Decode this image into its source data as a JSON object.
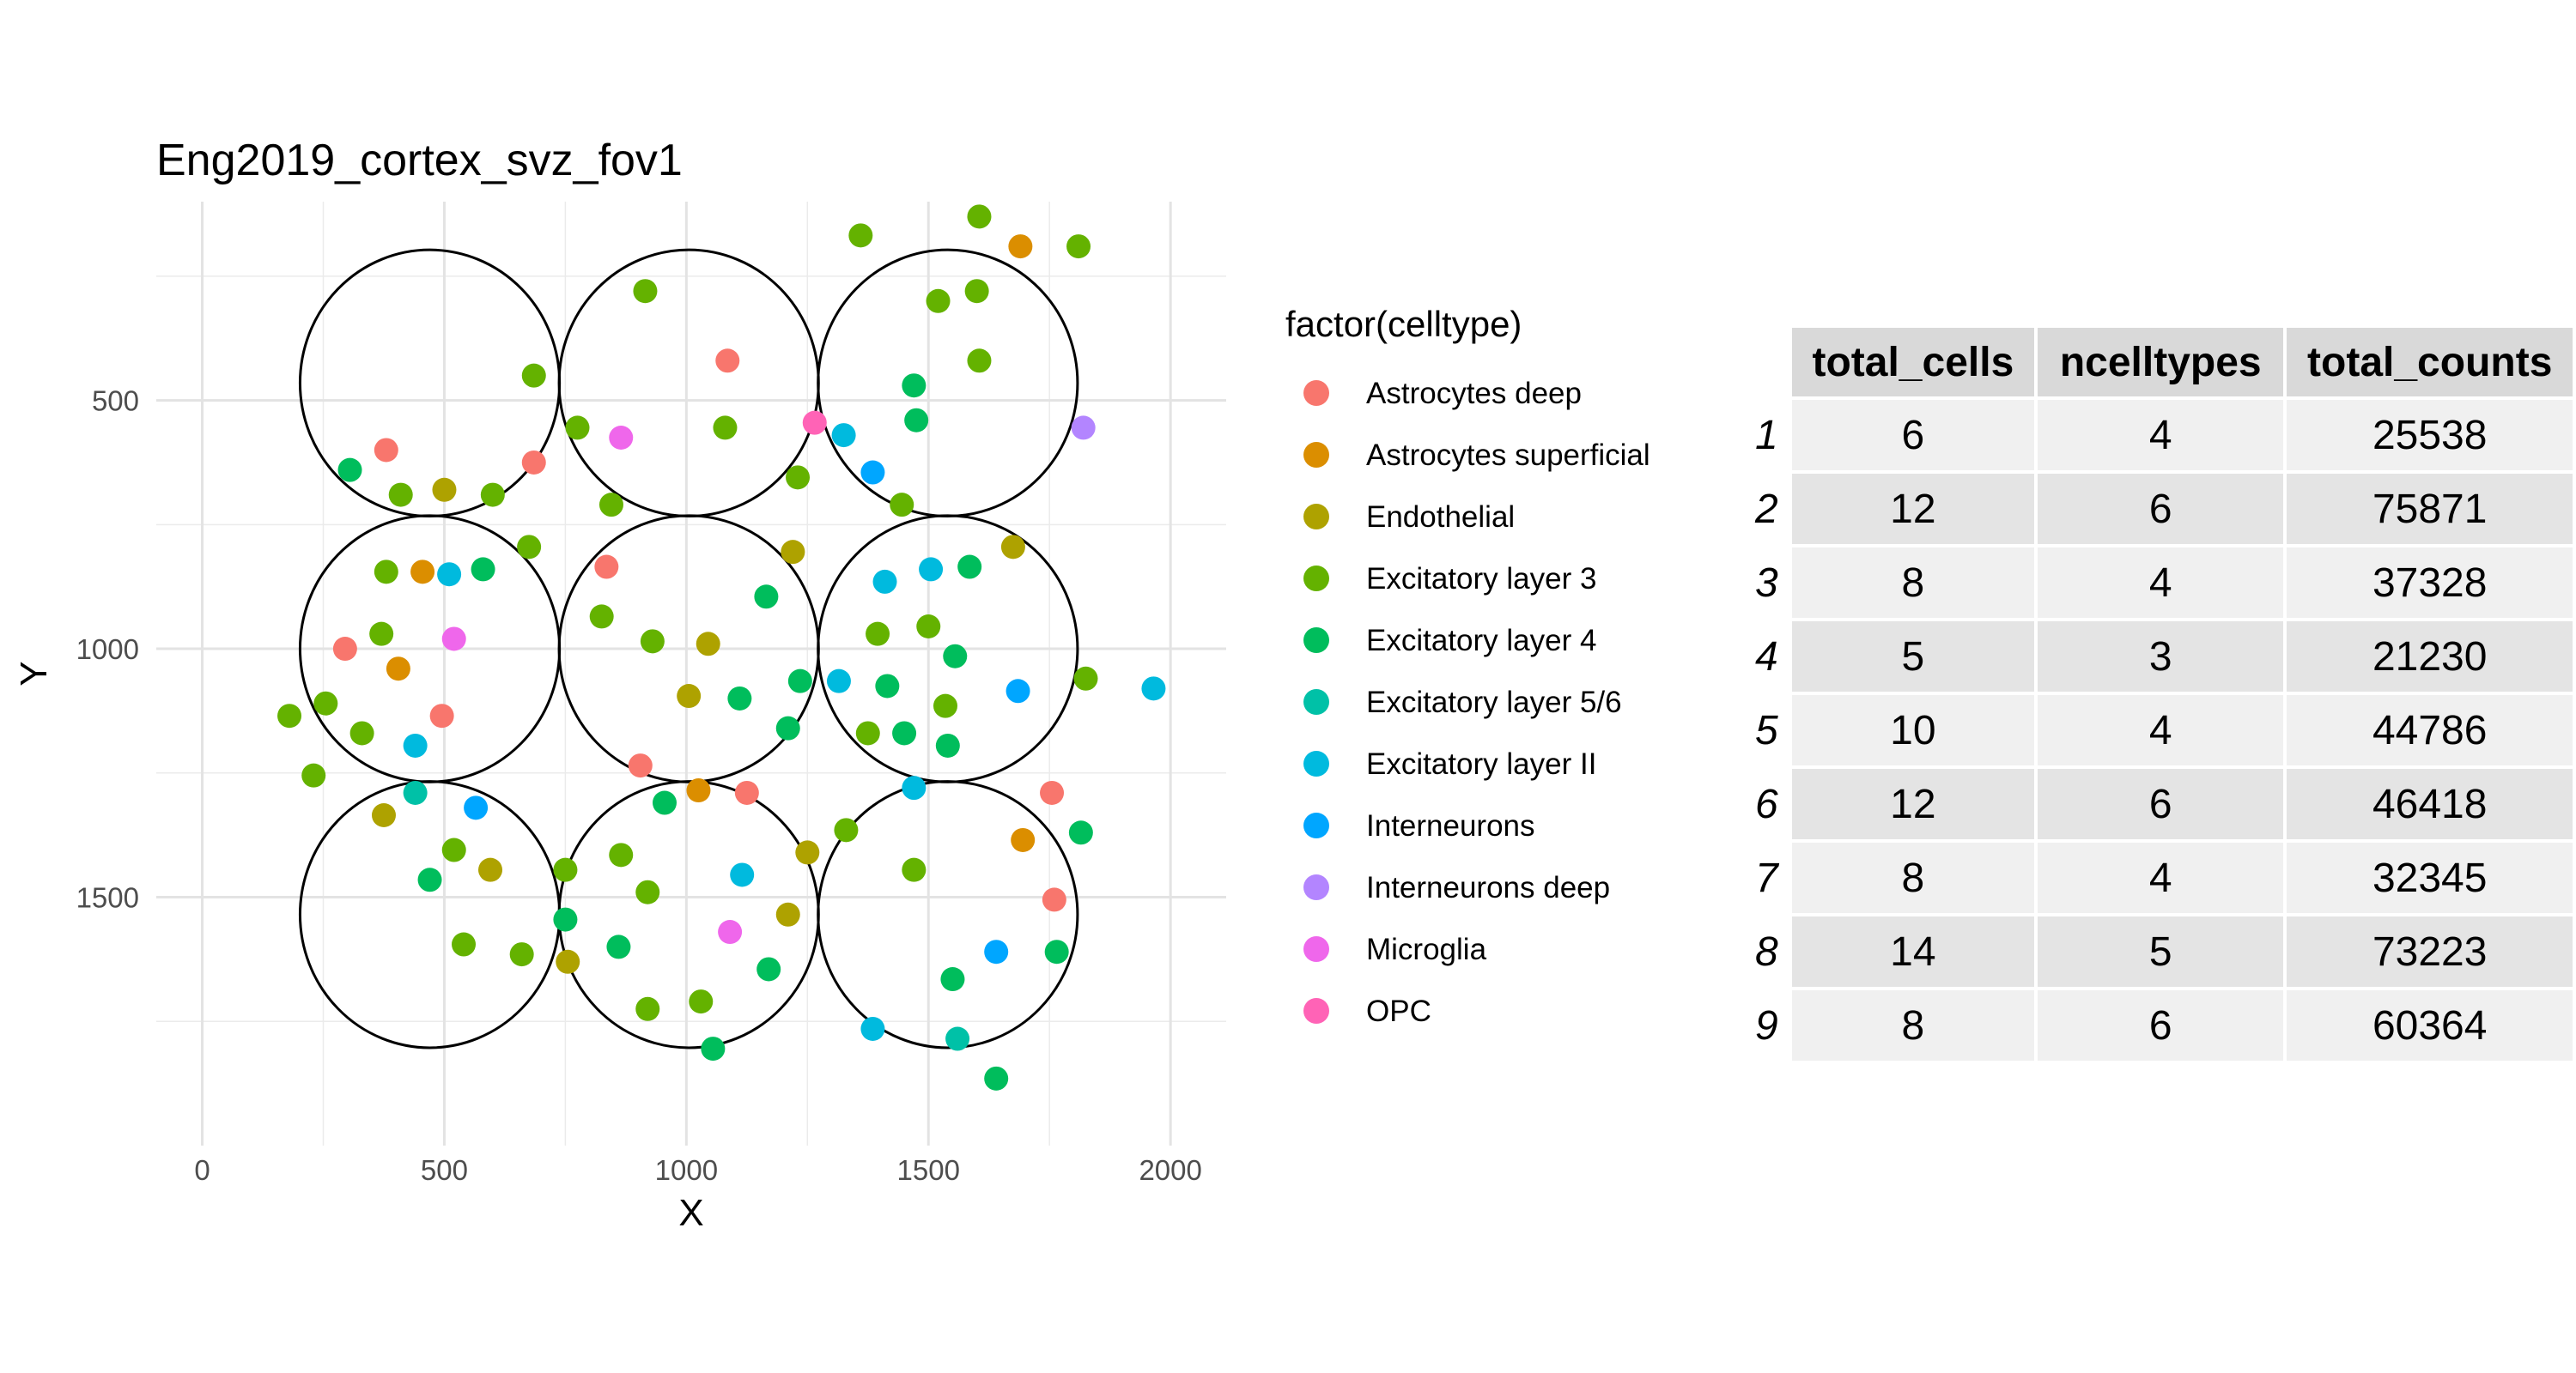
{
  "chart_data": {
    "type": "scatter",
    "title": "Eng2019_cortex_svz_fov1",
    "xlabel": "X",
    "ylabel": "Y",
    "xlim": [
      -95,
      2115
    ],
    "ylim": [
      2000,
      100
    ],
    "y_reversed": true,
    "x_ticks": [
      0,
      500,
      1000,
      1500,
      2000
    ],
    "y_ticks": [
      500,
      1000,
      1500
    ],
    "grid": true,
    "legend_title": "factor(celltype)",
    "legend_position": "right",
    "categories": [
      {
        "name": "Astrocytes deep",
        "color": "#F8766D"
      },
      {
        "name": "Astrocytes superficial",
        "color": "#DB8E00"
      },
      {
        "name": "Endothelial",
        "color": "#AEA200"
      },
      {
        "name": "Excitatory layer 3",
        "color": "#64B200"
      },
      {
        "name": "Excitatory layer 4",
        "color": "#00BD5C"
      },
      {
        "name": "Excitatory layer 5/6",
        "color": "#00C1A7"
      },
      {
        "name": "Excitatory layer II",
        "color": "#00BADE"
      },
      {
        "name": "Interneurons",
        "color": "#00A6FF"
      },
      {
        "name": "Interneurons deep",
        "color": "#B385FF"
      },
      {
        "name": "Microglia",
        "color": "#EF67EB"
      },
      {
        "name": "OPC",
        "color": "#FF63B6"
      }
    ],
    "circles": [
      {
        "cx": 470,
        "cy": 465,
        "r": 268
      },
      {
        "cx": 1005,
        "cy": 465,
        "r": 268
      },
      {
        "cx": 1540,
        "cy": 465,
        "r": 268
      },
      {
        "cx": 470,
        "cy": 1000,
        "r": 268
      },
      {
        "cx": 1005,
        "cy": 1000,
        "r": 268
      },
      {
        "cx": 1540,
        "cy": 1000,
        "r": 268
      },
      {
        "cx": 470,
        "cy": 1535,
        "r": 268
      },
      {
        "cx": 1005,
        "cy": 1535,
        "r": 268
      },
      {
        "cx": 1540,
        "cy": 1535,
        "r": 268
      }
    ],
    "points": [
      {
        "x": 1360,
        "y": 168,
        "type": "Excitatory layer 3"
      },
      {
        "x": 1605,
        "y": 130,
        "type": "Excitatory layer 3"
      },
      {
        "x": 1690,
        "y": 190,
        "type": "Astrocytes superficial"
      },
      {
        "x": 1810,
        "y": 190,
        "type": "Excitatory layer 3"
      },
      {
        "x": 915,
        "y": 280,
        "type": "Excitatory layer 3"
      },
      {
        "x": 1520,
        "y": 300,
        "type": "Excitatory layer 3"
      },
      {
        "x": 1600,
        "y": 280,
        "type": "Excitatory layer 3"
      },
      {
        "x": 1085,
        "y": 420,
        "type": "Astrocytes deep"
      },
      {
        "x": 1605,
        "y": 420,
        "type": "Excitatory layer 3"
      },
      {
        "x": 685,
        "y": 450,
        "type": "Excitatory layer 3"
      },
      {
        "x": 1470,
        "y": 470,
        "type": "Excitatory layer 4"
      },
      {
        "x": 775,
        "y": 555,
        "type": "Excitatory layer 3"
      },
      {
        "x": 865,
        "y": 575,
        "type": "Microglia"
      },
      {
        "x": 1080,
        "y": 555,
        "type": "Excitatory layer 3"
      },
      {
        "x": 1265,
        "y": 545,
        "type": "OPC"
      },
      {
        "x": 1325,
        "y": 570,
        "type": "Excitatory layer II"
      },
      {
        "x": 1475,
        "y": 540,
        "type": "Excitatory layer 4"
      },
      {
        "x": 1820,
        "y": 555,
        "type": "Interneurons deep"
      },
      {
        "x": 380,
        "y": 600,
        "type": "Astrocytes deep"
      },
      {
        "x": 685,
        "y": 625,
        "type": "Astrocytes deep"
      },
      {
        "x": 305,
        "y": 640,
        "type": "Excitatory layer 4"
      },
      {
        "x": 1230,
        "y": 655,
        "type": "Excitatory layer 3"
      },
      {
        "x": 1385,
        "y": 645,
        "type": "Interneurons"
      },
      {
        "x": 410,
        "y": 690,
        "type": "Excitatory layer 3"
      },
      {
        "x": 500,
        "y": 680,
        "type": "Endothelial"
      },
      {
        "x": 600,
        "y": 690,
        "type": "Excitatory layer 3"
      },
      {
        "x": 845,
        "y": 710,
        "type": "Excitatory layer 3"
      },
      {
        "x": 1445,
        "y": 710,
        "type": "Excitatory layer 3"
      },
      {
        "x": 675,
        "y": 795,
        "type": "Excitatory layer 3"
      },
      {
        "x": 1220,
        "y": 805,
        "type": "Endothelial"
      },
      {
        "x": 1675,
        "y": 795,
        "type": "Endothelial"
      },
      {
        "x": 835,
        "y": 835,
        "type": "Astrocytes deep"
      },
      {
        "x": 380,
        "y": 845,
        "type": "Excitatory layer 3"
      },
      {
        "x": 455,
        "y": 845,
        "type": "Astrocytes superficial"
      },
      {
        "x": 510,
        "y": 850,
        "type": "Excitatory layer II"
      },
      {
        "x": 580,
        "y": 840,
        "type": "Excitatory layer 4"
      },
      {
        "x": 1585,
        "y": 835,
        "type": "Excitatory layer 4"
      },
      {
        "x": 1505,
        "y": 840,
        "type": "Excitatory layer II"
      },
      {
        "x": 1410,
        "y": 865,
        "type": "Excitatory layer II"
      },
      {
        "x": 1165,
        "y": 895,
        "type": "Excitatory layer 4"
      },
      {
        "x": 825,
        "y": 935,
        "type": "Excitatory layer 3"
      },
      {
        "x": 370,
        "y": 970,
        "type": "Excitatory layer 3"
      },
      {
        "x": 520,
        "y": 980,
        "type": "Microglia"
      },
      {
        "x": 930,
        "y": 985,
        "type": "Excitatory layer 3"
      },
      {
        "x": 1045,
        "y": 990,
        "type": "Endothelial"
      },
      {
        "x": 1395,
        "y": 970,
        "type": "Excitatory layer 3"
      },
      {
        "x": 1500,
        "y": 955,
        "type": "Excitatory layer 3"
      },
      {
        "x": 295,
        "y": 1000,
        "type": "Astrocytes deep"
      },
      {
        "x": 1555,
        "y": 1015,
        "type": "Excitatory layer 4"
      },
      {
        "x": 405,
        "y": 1040,
        "type": "Astrocytes superficial"
      },
      {
        "x": 1235,
        "y": 1065,
        "type": "Excitatory layer 4"
      },
      {
        "x": 1315,
        "y": 1065,
        "type": "Excitatory layer II"
      },
      {
        "x": 1415,
        "y": 1075,
        "type": "Excitatory layer 4"
      },
      {
        "x": 1685,
        "y": 1085,
        "type": "Interneurons"
      },
      {
        "x": 1825,
        "y": 1060,
        "type": "Excitatory layer 3"
      },
      {
        "x": 1965,
        "y": 1080,
        "type": "Excitatory layer II"
      },
      {
        "x": 1005,
        "y": 1095,
        "type": "Endothelial"
      },
      {
        "x": 1110,
        "y": 1100,
        "type": "Excitatory layer 4"
      },
      {
        "x": 255,
        "y": 1110,
        "type": "Excitatory layer 3"
      },
      {
        "x": 180,
        "y": 1135,
        "type": "Excitatory layer 3"
      },
      {
        "x": 495,
        "y": 1135,
        "type": "Astrocytes deep"
      },
      {
        "x": 1535,
        "y": 1115,
        "type": "Excitatory layer 3"
      },
      {
        "x": 1210,
        "y": 1160,
        "type": "Excitatory layer 4"
      },
      {
        "x": 330,
        "y": 1170,
        "type": "Excitatory layer 3"
      },
      {
        "x": 1375,
        "y": 1170,
        "type": "Excitatory layer 3"
      },
      {
        "x": 1450,
        "y": 1170,
        "type": "Excitatory layer 4"
      },
      {
        "x": 440,
        "y": 1195,
        "type": "Excitatory layer II"
      },
      {
        "x": 1540,
        "y": 1195,
        "type": "Excitatory layer 4"
      },
      {
        "x": 905,
        "y": 1235,
        "type": "Astrocytes deep"
      },
      {
        "x": 230,
        "y": 1255,
        "type": "Excitatory layer 3"
      },
      {
        "x": 440,
        "y": 1290,
        "type": "Excitatory layer 5/6"
      },
      {
        "x": 1025,
        "y": 1285,
        "type": "Astrocytes superficial"
      },
      {
        "x": 1125,
        "y": 1290,
        "type": "Astrocytes deep"
      },
      {
        "x": 1470,
        "y": 1280,
        "type": "Excitatory layer II"
      },
      {
        "x": 1755,
        "y": 1290,
        "type": "Astrocytes deep"
      },
      {
        "x": 955,
        "y": 1310,
        "type": "Excitatory layer 4"
      },
      {
        "x": 375,
        "y": 1335,
        "type": "Endothelial"
      },
      {
        "x": 565,
        "y": 1320,
        "type": "Interneurons"
      },
      {
        "x": 1330,
        "y": 1365,
        "type": "Excitatory layer 3"
      },
      {
        "x": 1815,
        "y": 1370,
        "type": "Excitatory layer 4"
      },
      {
        "x": 1695,
        "y": 1385,
        "type": "Astrocytes superficial"
      },
      {
        "x": 520,
        "y": 1405,
        "type": "Excitatory layer 3"
      },
      {
        "x": 865,
        "y": 1415,
        "type": "Excitatory layer 3"
      },
      {
        "x": 1250,
        "y": 1410,
        "type": "Endothelial"
      },
      {
        "x": 750,
        "y": 1445,
        "type": "Excitatory layer 3"
      },
      {
        "x": 595,
        "y": 1445,
        "type": "Endothelial"
      },
      {
        "x": 1470,
        "y": 1445,
        "type": "Excitatory layer 3"
      },
      {
        "x": 1115,
        "y": 1455,
        "type": "Excitatory layer II"
      },
      {
        "x": 470,
        "y": 1465,
        "type": "Excitatory layer 4"
      },
      {
        "x": 920,
        "y": 1490,
        "type": "Excitatory layer 3"
      },
      {
        "x": 1760,
        "y": 1505,
        "type": "Astrocytes deep"
      },
      {
        "x": 1210,
        "y": 1535,
        "type": "Endothelial"
      },
      {
        "x": 750,
        "y": 1545,
        "type": "Excitatory layer 4"
      },
      {
        "x": 1090,
        "y": 1570,
        "type": "Microglia"
      },
      {
        "x": 540,
        "y": 1595,
        "type": "Excitatory layer 3"
      },
      {
        "x": 860,
        "y": 1600,
        "type": "Excitatory layer 4"
      },
      {
        "x": 660,
        "y": 1615,
        "type": "Excitatory layer 3"
      },
      {
        "x": 1640,
        "y": 1610,
        "type": "Interneurons"
      },
      {
        "x": 1765,
        "y": 1610,
        "type": "Excitatory layer 4"
      },
      {
        "x": 755,
        "y": 1630,
        "type": "Endothelial"
      },
      {
        "x": 1170,
        "y": 1645,
        "type": "Excitatory layer 4"
      },
      {
        "x": 1550,
        "y": 1665,
        "type": "Excitatory layer 4"
      },
      {
        "x": 920,
        "y": 1725,
        "type": "Excitatory layer 3"
      },
      {
        "x": 1030,
        "y": 1710,
        "type": "Excitatory layer 3"
      },
      {
        "x": 1385,
        "y": 1765,
        "type": "Excitatory layer II"
      },
      {
        "x": 1560,
        "y": 1785,
        "type": "Excitatory layer 5/6"
      },
      {
        "x": 1055,
        "y": 1805,
        "type": "Excitatory layer 4"
      },
      {
        "x": 1640,
        "y": 1865,
        "type": "Excitatory layer 4"
      }
    ]
  },
  "table": {
    "columns": [
      "total_cells",
      "ncelltypes",
      "total_counts"
    ],
    "rows": [
      {
        "id": "1",
        "total_cells": "6",
        "ncelltypes": "4",
        "total_counts": "25538"
      },
      {
        "id": "2",
        "total_cells": "12",
        "ncelltypes": "6",
        "total_counts": "75871"
      },
      {
        "id": "3",
        "total_cells": "8",
        "ncelltypes": "4",
        "total_counts": "37328"
      },
      {
        "id": "4",
        "total_cells": "5",
        "ncelltypes": "3",
        "total_counts": "21230"
      },
      {
        "id": "5",
        "total_cells": "10",
        "ncelltypes": "4",
        "total_counts": "44786"
      },
      {
        "id": "6",
        "total_cells": "12",
        "ncelltypes": "6",
        "total_counts": "46418"
      },
      {
        "id": "7",
        "total_cells": "8",
        "ncelltypes": "4",
        "total_counts": "32345"
      },
      {
        "id": "8",
        "total_cells": "14",
        "ncelltypes": "5",
        "total_counts": "73223"
      },
      {
        "id": "9",
        "total_cells": "8",
        "ncelltypes": "6",
        "total_counts": "60364"
      }
    ]
  }
}
